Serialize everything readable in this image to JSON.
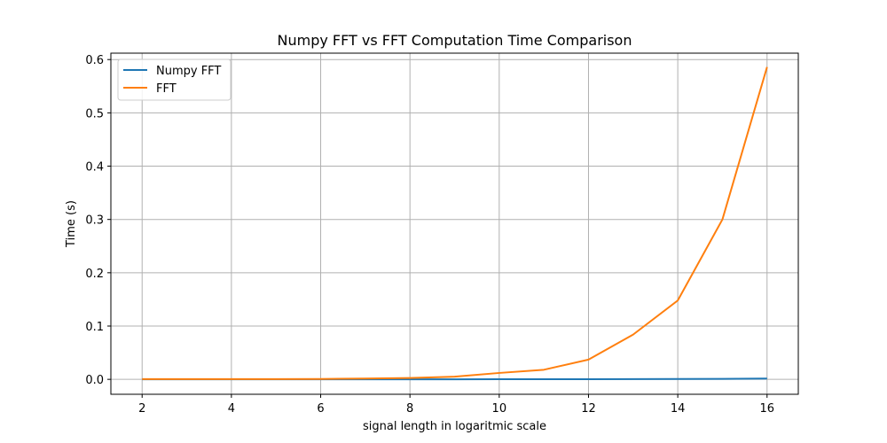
{
  "chart_data": {
    "type": "line",
    "title": "Numpy FFT vs FFT Computation Time Comparison",
    "xlabel": "signal length in logaritmic scale",
    "ylabel": "Time (s)",
    "xlim": [
      1.3,
      16.7
    ],
    "ylim": [
      -0.028,
      0.612
    ],
    "xticks": [
      2,
      4,
      6,
      8,
      10,
      12,
      14,
      16
    ],
    "yticks": [
      0.0,
      0.1,
      0.2,
      0.3,
      0.4,
      0.5,
      0.6
    ],
    "ytick_labels": [
      "0.0",
      "0.1",
      "0.2",
      "0.3",
      "0.4",
      "0.5",
      "0.6"
    ],
    "grid": true,
    "legend_position": "top-left",
    "x": [
      2,
      3,
      4,
      5,
      6,
      7,
      8,
      9,
      10,
      11,
      12,
      13,
      14,
      15,
      16
    ],
    "series": [
      {
        "name": "Numpy FFT",
        "color": "#1f77b4",
        "values": [
          0.0001,
          0.0001,
          0.0001,
          0.0001,
          0.0001,
          0.0001,
          0.0001,
          0.0001,
          0.0002,
          0.0002,
          0.0003,
          0.0004,
          0.0006,
          0.0009,
          0.0015
        ]
      },
      {
        "name": "FFT",
        "color": "#ff7f0e",
        "values": [
          0.0005,
          0.0005,
          0.0004,
          0.0005,
          0.0007,
          0.0015,
          0.0025,
          0.005,
          0.012,
          0.018,
          0.037,
          0.084,
          0.148,
          0.3,
          0.586
        ]
      }
    ]
  }
}
